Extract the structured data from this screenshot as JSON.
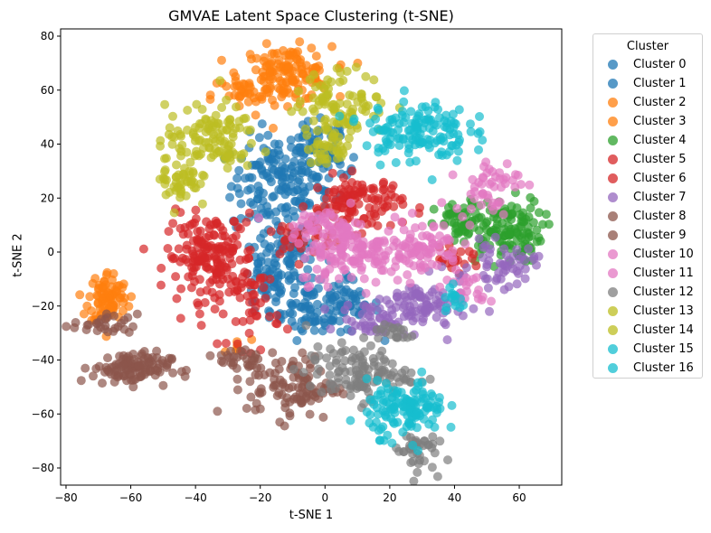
{
  "chart_data": {
    "type": "scatter",
    "title": "GMVAE Latent Space Clustering (t-SNE)",
    "xlabel": "t-SNE 1",
    "ylabel": "t-SNE 2",
    "xlim": [
      -83,
      72
    ],
    "ylim": [
      -86,
      83
    ],
    "xticks": [
      "−80",
      "−60",
      "−40",
      "−20",
      "0",
      "20",
      "40",
      "60"
    ],
    "xtick_values": [
      -80,
      -60,
      -40,
      -20,
      0,
      20,
      40,
      60
    ],
    "yticks": [
      "80",
      "60",
      "40",
      "20",
      "0",
      "−20",
      "−40",
      "−60",
      "−80"
    ],
    "ytick_values": [
      80,
      60,
      40,
      20,
      0,
      -20,
      -40,
      -60,
      -80
    ],
    "grid": false,
    "legend": {
      "title": "Cluster",
      "position": "outside upper right"
    },
    "point_alpha": 0.7,
    "series": [
      {
        "name": "Cluster 0",
        "color": "#1f77b4",
        "blobs": [
          [
            -15,
            25,
            7,
            9,
            140
          ],
          [
            -10,
            0,
            5,
            8,
            60
          ],
          [
            -5,
            -20,
            6,
            6,
            60
          ],
          [
            0,
            30,
            5,
            6,
            40
          ]
        ]
      },
      {
        "name": "Cluster 1",
        "color": "#1f77b4",
        "blobs": [
          [
            5,
            -20,
            6,
            5,
            60
          ],
          [
            -18,
            -10,
            4,
            8,
            50
          ],
          [
            -3,
            40,
            5,
            4,
            40
          ]
        ]
      },
      {
        "name": "Cluster 2",
        "color": "#ff7f0e",
        "blobs": [
          [
            -12,
            66,
            7,
            5,
            140
          ],
          [
            -25,
            58,
            5,
            4,
            30
          ]
        ]
      },
      {
        "name": "Cluster 3",
        "color": "#ff7f0e",
        "blobs": [
          [
            -67,
            -17,
            3,
            5,
            90
          ],
          [
            -27,
            -34,
            2,
            2,
            6
          ]
        ]
      },
      {
        "name": "Cluster 4",
        "color": "#2ca02c",
        "blobs": [
          [
            55,
            8,
            6,
            6,
            130
          ],
          [
            42,
            10,
            4,
            4,
            40
          ]
        ]
      },
      {
        "name": "Cluster 5",
        "color": "#d62728",
        "blobs": [
          [
            -35,
            -2,
            7,
            8,
            180
          ],
          [
            -22,
            -20,
            4,
            8,
            40
          ]
        ]
      },
      {
        "name": "Cluster 6",
        "color": "#d62728",
        "blobs": [
          [
            10,
            18,
            7,
            5,
            110
          ],
          [
            -8,
            5,
            5,
            4,
            30
          ],
          [
            40,
            -3,
            4,
            2,
            20
          ]
        ]
      },
      {
        "name": "Cluster 7",
        "color": "#9467bd",
        "blobs": [
          [
            30,
            -20,
            7,
            5,
            90
          ],
          [
            55,
            -5,
            5,
            4,
            50
          ],
          [
            15,
            -25,
            5,
            3,
            40
          ]
        ]
      },
      {
        "name": "Cluster 8",
        "color": "#8c564b",
        "blobs": [
          [
            -60,
            -43,
            6,
            3,
            110
          ],
          [
            -68,
            -27,
            5,
            2,
            30
          ]
        ]
      },
      {
        "name": "Cluster 9",
        "color": "#8c564b",
        "blobs": [
          [
            -10,
            -50,
            7,
            6,
            100
          ],
          [
            -25,
            -40,
            4,
            3,
            30
          ]
        ]
      },
      {
        "name": "Cluster 10",
        "color": "#e377c2",
        "blobs": [
          [
            10,
            0,
            9,
            6,
            150
          ],
          [
            30,
            2,
            6,
            5,
            70
          ]
        ]
      },
      {
        "name": "Cluster 11",
        "color": "#e377c2",
        "blobs": [
          [
            50,
            25,
            5,
            5,
            50
          ],
          [
            45,
            -15,
            3,
            3,
            20
          ],
          [
            0,
            10,
            5,
            3,
            40
          ]
        ]
      },
      {
        "name": "Cluster 12",
        "color": "#7f7f7f",
        "blobs": [
          [
            10,
            -45,
            8,
            5,
            120
          ],
          [
            28,
            -73,
            3,
            4,
            40
          ],
          [
            20,
            -30,
            4,
            2,
            20
          ]
        ]
      },
      {
        "name": "Cluster 13",
        "color": "#bcbd22",
        "blobs": [
          [
            -35,
            42,
            7,
            6,
            110
          ],
          [
            -45,
            28,
            3,
            6,
            50
          ]
        ]
      },
      {
        "name": "Cluster 14",
        "color": "#bcbd22",
        "blobs": [
          [
            5,
            55,
            7,
            6,
            90
          ],
          [
            2,
            40,
            4,
            4,
            40
          ]
        ]
      },
      {
        "name": "Cluster 15",
        "color": "#17becf",
        "blobs": [
          [
            28,
            45,
            8,
            6,
            140
          ],
          [
            40,
            -18,
            2,
            3,
            15
          ]
        ]
      },
      {
        "name": "Cluster 16",
        "color": "#17becf",
        "blobs": [
          [
            25,
            -58,
            6,
            5,
            130
          ]
        ]
      }
    ]
  }
}
